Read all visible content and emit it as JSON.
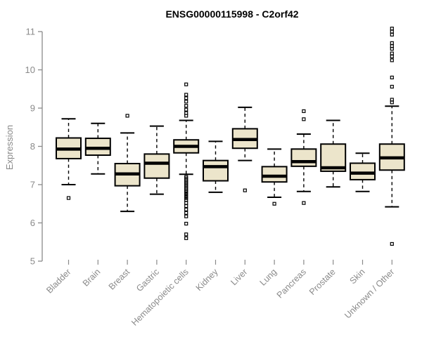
{
  "title": "ENSG00000115998 - C2orf42",
  "chart_data": {
    "type": "boxplot",
    "title": "ENSG00000115998 - C2orf42",
    "xlabel": "",
    "ylabel": "Expression",
    "ylim": [
      5,
      11
    ],
    "yticks": [
      5,
      6,
      7,
      8,
      9,
      10,
      11
    ],
    "grid": false,
    "legend": "none",
    "categories": [
      "Bladder",
      "Brain",
      "Breast",
      "Gastric",
      "Hematopoietic cells",
      "Kidney",
      "Liver",
      "Lung",
      "Pancreas",
      "Prostate",
      "Skin",
      "Unknown / Other"
    ],
    "series": [
      {
        "name": "Bladder",
        "whislo": 7.0,
        "q1": 7.68,
        "med": 7.93,
        "q3": 8.22,
        "whishi": 8.72,
        "outliers": [
          6.65
        ]
      },
      {
        "name": "Brain",
        "whislo": 7.28,
        "q1": 7.77,
        "med": 7.95,
        "q3": 8.21,
        "whishi": 8.6,
        "outliers": []
      },
      {
        "name": "Breast",
        "whislo": 6.3,
        "q1": 6.97,
        "med": 7.28,
        "q3": 7.55,
        "whishi": 8.35,
        "outliers": [
          8.8
        ]
      },
      {
        "name": "Gastric",
        "whislo": 6.75,
        "q1": 7.17,
        "med": 7.56,
        "q3": 7.8,
        "whishi": 8.53,
        "outliers": []
      },
      {
        "name": "Hematopoietic cells",
        "whislo": 7.27,
        "q1": 7.83,
        "med": 8.0,
        "q3": 8.17,
        "whishi": 8.68,
        "outliers": [
          9.62,
          9.35,
          9.26,
          9.17,
          9.06,
          8.96,
          8.87,
          8.8,
          7.2,
          7.16,
          7.12,
          7.08,
          7.04,
          7.0,
          6.96,
          6.92,
          6.88,
          6.84,
          6.8,
          6.75,
          6.7,
          6.65,
          6.6,
          6.52,
          6.44,
          6.35,
          6.26,
          6.17,
          5.98,
          5.7,
          5.6
        ]
      },
      {
        "name": "Kidney",
        "whislo": 6.8,
        "q1": 7.1,
        "med": 7.47,
        "q3": 7.63,
        "whishi": 8.13,
        "outliers": []
      },
      {
        "name": "Liver",
        "whislo": 7.63,
        "q1": 7.95,
        "med": 8.18,
        "q3": 8.46,
        "whishi": 9.02,
        "outliers": [
          6.85
        ]
      },
      {
        "name": "Lung",
        "whislo": 6.67,
        "q1": 7.07,
        "med": 7.22,
        "q3": 7.47,
        "whishi": 7.93,
        "outliers": [
          6.5
        ]
      },
      {
        "name": "Pancreas",
        "whislo": 6.82,
        "q1": 7.48,
        "med": 7.6,
        "q3": 7.93,
        "whishi": 8.32,
        "outliers": [
          8.92,
          8.71,
          6.52
        ]
      },
      {
        "name": "Prostate",
        "whislo": 6.94,
        "q1": 7.35,
        "med": 7.44,
        "q3": 8.06,
        "whishi": 8.68,
        "outliers": []
      },
      {
        "name": "Skin",
        "whislo": 6.82,
        "q1": 7.13,
        "med": 7.3,
        "q3": 7.56,
        "whishi": 7.82,
        "outliers": []
      },
      {
        "name": "Unknown / Other",
        "whislo": 6.42,
        "q1": 7.38,
        "med": 7.7,
        "q3": 8.06,
        "whishi": 9.05,
        "outliers": [
          11.08,
          11.0,
          10.92,
          10.7,
          10.62,
          10.55,
          10.43,
          10.35,
          10.25,
          9.8,
          9.56,
          9.22,
          9.15,
          5.45
        ]
      }
    ]
  },
  "colors": {
    "box_fill": "#ECE5CB",
    "box_border": "#000000",
    "median": "#000000",
    "whisker": "#000000",
    "axis": "#8a8a8a",
    "tick_label": "#8a8a8a",
    "title": "#000000",
    "background": "#ffffff"
  }
}
